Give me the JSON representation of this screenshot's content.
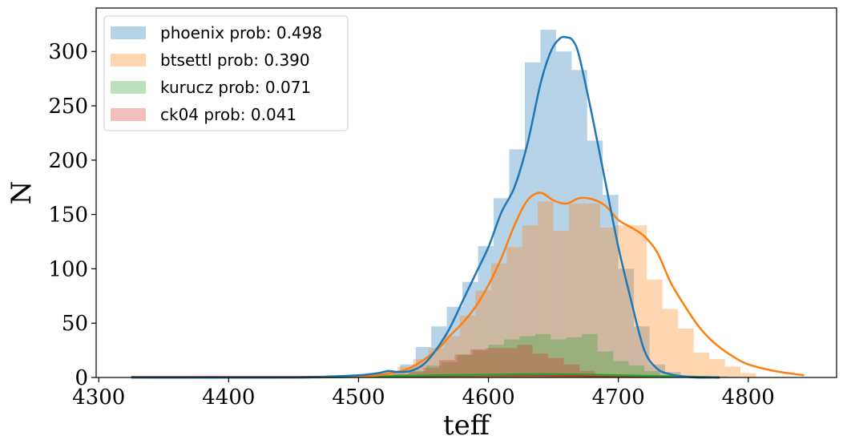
{
  "chart_data": {
    "type": "bar",
    "xlabel": "teff",
    "ylabel": "N",
    "xlim": [
      4298,
      4868
    ],
    "ylim": [
      0,
      340
    ],
    "xticks": [
      4300,
      4400,
      4500,
      4600,
      4700,
      4800
    ],
    "yticks": [
      0,
      50,
      100,
      150,
      200,
      250,
      300
    ],
    "legend_position": "top-left",
    "grid": false,
    "histograms": [
      {
        "name": "phoenix prob: 0.498",
        "color": "#1f77b4",
        "alpha": 0.32,
        "edges": [
          4493,
          4506,
          4520,
          4532,
          4544,
          4556,
          4568,
          4580,
          4592,
          4604,
          4616,
          4628,
          4640,
          4652,
          4664,
          4676,
          4688,
          4700,
          4712,
          4724,
          4736,
          4748,
          4760,
          4772,
          4784
        ],
        "counts": [
          2,
          4,
          6,
          12,
          28,
          47,
          65,
          88,
          121,
          165,
          210,
          290,
          320,
          300,
          283,
          218,
          168,
          100,
          47,
          12,
          5,
          2,
          1,
          1
        ]
      },
      {
        "name": "btsettl prob: 0.390",
        "color": "#ff7f0e",
        "alpha": 0.32,
        "edges": [
          4506,
          4518,
          4530,
          4542,
          4554,
          4566,
          4578,
          4590,
          4602,
          4614,
          4626,
          4638,
          4650,
          4662,
          4674,
          4686,
          4698,
          4710,
          4722,
          4734,
          4746,
          4758,
          4770,
          4782,
          4794,
          4806
        ],
        "counts": [
          3,
          5,
          10,
          17,
          27,
          38,
          57,
          80,
          105,
          120,
          140,
          162,
          135,
          160,
          160,
          138,
          140,
          140,
          90,
          63,
          45,
          23,
          17,
          10,
          4
        ]
      },
      {
        "name": "kurucz prob: 0.071",
        "color": "#2ca02c",
        "alpha": 0.32,
        "edges": [
          4528,
          4540,
          4552,
          4564,
          4576,
          4588,
          4600,
          4612,
          4624,
          4636,
          4648,
          4660,
          4672,
          4684,
          4696,
          4708,
          4720,
          4732,
          4744
        ],
        "counts": [
          3,
          6,
          11,
          14,
          21,
          25,
          30,
          35,
          38,
          40,
          35,
          37,
          40,
          24,
          15,
          11,
          6,
          2
        ]
      },
      {
        "name": "ck04 prob: 0.041",
        "color": "#d62728",
        "alpha": 0.3,
        "edges": [
          4526,
          4538,
          4550,
          4562,
          4574,
          4586,
          4598,
          4610,
          4622,
          4634,
          4646,
          4658,
          4670,
          4682,
          4694,
          4706
        ],
        "counts": [
          3,
          5,
          9,
          16,
          21,
          26,
          27,
          27,
          30,
          22,
          18,
          12,
          6,
          3,
          1
        ]
      }
    ],
    "kde_lines": [
      {
        "color": "#1f77b4",
        "x": [
          4325,
          4450,
          4480,
          4500,
          4515,
          4523,
          4530,
          4540,
          4550,
          4560,
          4570,
          4580,
          4590,
          4600,
          4610,
          4620,
          4630,
          4640,
          4648,
          4655,
          4660,
          4665,
          4670,
          4680,
          4690,
          4700,
          4710,
          4720,
          4730,
          4740,
          4750,
          4760,
          4778
        ],
        "y": [
          0,
          0,
          1,
          2,
          4,
          6,
          5,
          6,
          12,
          26,
          45,
          70,
          95,
          120,
          152,
          175,
          215,
          270,
          300,
          312,
          313,
          310,
          295,
          240,
          180,
          120,
          70,
          25,
          8,
          3,
          1,
          0,
          0
        ]
      },
      {
        "color": "#ff7f0e",
        "x": [
          4325,
          4450,
          4500,
          4520,
          4540,
          4560,
          4570,
          4580,
          4590,
          4600,
          4610,
          4620,
          4630,
          4640,
          4650,
          4660,
          4670,
          4680,
          4690,
          4700,
          4710,
          4720,
          4730,
          4740,
          4750,
          4760,
          4770,
          4780,
          4790,
          4800,
          4820,
          4843
        ],
        "y": [
          0,
          0,
          1,
          3,
          9,
          25,
          38,
          50,
          65,
          85,
          110,
          140,
          163,
          170,
          163,
          160,
          165,
          164,
          158,
          145,
          138,
          130,
          115,
          88,
          68,
          50,
          36,
          26,
          18,
          12,
          6,
          2
        ]
      },
      {
        "color": "#2ca02c",
        "x": [
          4325,
          4450,
          4520,
          4560,
          4600,
          4640,
          4680,
          4720,
          4760,
          4778
        ],
        "y": [
          0,
          0,
          1,
          2,
          2.5,
          3,
          2.5,
          1.5,
          0.5,
          0
        ]
      },
      {
        "color": "#d62728",
        "x": [
          4325,
          4450,
          4520,
          4560,
          4600,
          4640,
          4680,
          4720,
          4760,
          4778
        ],
        "y": [
          0.5,
          0.5,
          1,
          1.5,
          2,
          2,
          1.5,
          1,
          0.5,
          0
        ]
      }
    ]
  }
}
